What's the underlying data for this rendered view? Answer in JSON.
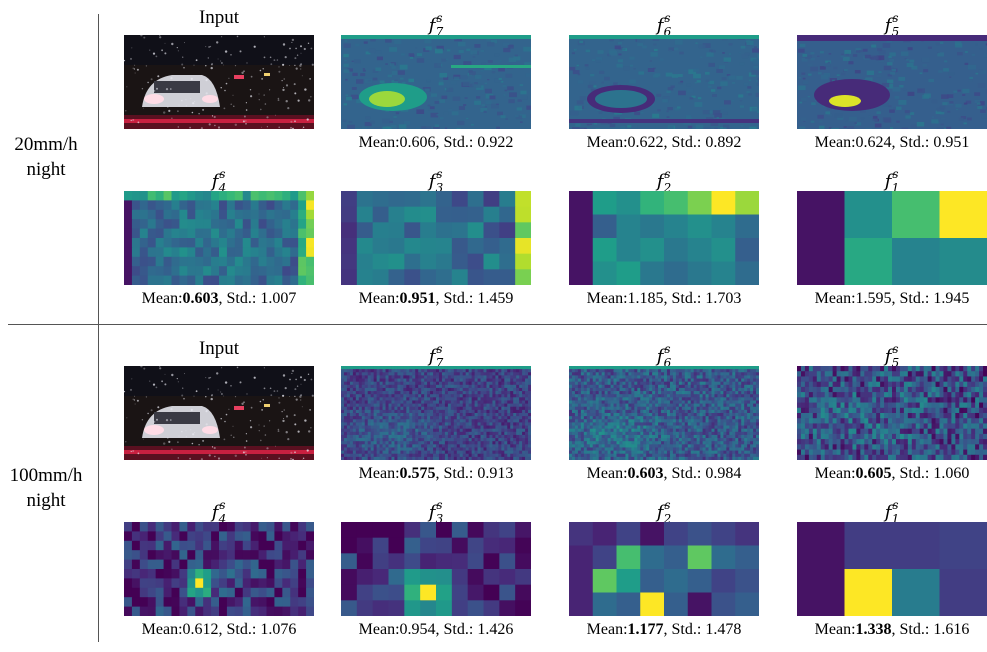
{
  "groups": [
    {
      "label_lines": [
        "20mm/h",
        "night"
      ],
      "cells": [
        {
          "title": "Input",
          "is_math": false,
          "kind": "photo",
          "mean": "",
          "std": "",
          "mean_bold": false,
          "std_bold": false
        },
        {
          "title": "f",
          "sub": "7",
          "sup": "s",
          "is_math": true,
          "kind": "feat7a",
          "mean": "0.606",
          "std": "0.922",
          "mean_bold": false,
          "std_bold": false
        },
        {
          "title": "f",
          "sub": "6",
          "sup": "s",
          "is_math": true,
          "kind": "feat6a",
          "mean": "0.622",
          "std": "0.892",
          "mean_bold": false,
          "std_bold": false
        },
        {
          "title": "f",
          "sub": "5",
          "sup": "s",
          "is_math": true,
          "kind": "feat5a",
          "mean": "0.624",
          "std": "0.951",
          "mean_bold": false,
          "std_bold": false
        },
        {
          "title": "f",
          "sub": "4",
          "sup": "s",
          "is_math": true,
          "kind": "grid",
          "grid": {
            "cols": 24,
            "rows": 10,
            "seed": 11,
            "base": 0.32,
            "var": 0.12,
            "edge": "both"
          },
          "mean": "0.603",
          "std": "1.007",
          "mean_bold": true,
          "std_bold": false
        },
        {
          "title": "f",
          "sub": "3",
          "sup": "s",
          "is_math": true,
          "kind": "grid",
          "grid": {
            "cols": 12,
            "rows": 6,
            "seed": 23,
            "base": 0.32,
            "var": 0.15,
            "edge": "right"
          },
          "mean": "0.951",
          "std": "1.459",
          "mean_bold": true,
          "std_bold": false
        },
        {
          "title": "f",
          "sub": "2",
          "sup": "s",
          "is_math": true,
          "kind": "matrix",
          "matrix": [
            [
              0.05,
              0.55,
              0.5,
              0.65,
              0.7,
              0.8,
              1.0,
              0.85
            ],
            [
              0.05,
              0.3,
              0.45,
              0.4,
              0.45,
              0.5,
              0.45,
              0.35
            ],
            [
              0.05,
              0.55,
              0.45,
              0.5,
              0.4,
              0.45,
              0.5,
              0.3
            ],
            [
              0.05,
              0.5,
              0.55,
              0.4,
              0.35,
              0.4,
              0.45,
              0.35
            ]
          ],
          "mean": "1.185",
          "std": "1.703",
          "mean_bold": false,
          "std_bold": false
        },
        {
          "title": "f",
          "sub": "1",
          "sup": "s",
          "is_math": true,
          "kind": "matrix",
          "matrix": [
            [
              0.05,
              0.5,
              0.7,
              1.0
            ],
            [
              0.05,
              0.6,
              0.45,
              0.48
            ]
          ],
          "mean": "1.595",
          "std": "1.945",
          "mean_bold": false,
          "std_bold": false
        }
      ]
    },
    {
      "label_lines": [
        "100mm/h",
        "night"
      ],
      "cells": [
        {
          "title": "Input",
          "is_math": false,
          "kind": "photo",
          "mean": "",
          "std": "",
          "mean_bold": false,
          "std_bold": false
        },
        {
          "title": "f",
          "sub": "7",
          "sup": "s",
          "is_math": true,
          "kind": "noise",
          "noise": {
            "seed": 31,
            "base": 0.2,
            "var": 0.12
          },
          "mean": "0.575",
          "std": "0.913",
          "mean_bold": true,
          "std_bold": false
        },
        {
          "title": "f",
          "sub": "6",
          "sup": "s",
          "is_math": true,
          "kind": "noise",
          "noise": {
            "seed": 47,
            "base": 0.28,
            "var": 0.15
          },
          "mean": "0.603",
          "std": "0.984",
          "mean_bold": true,
          "std_bold": false
        },
        {
          "title": "f",
          "sub": "5",
          "sup": "s",
          "is_math": true,
          "kind": "grid",
          "grid": {
            "cols": 48,
            "rows": 18,
            "seed": 53,
            "base": 0.22,
            "var": 0.22,
            "edge": "none"
          },
          "mean": "0.605",
          "std": "1.060",
          "mean_bold": true,
          "std_bold": false
        },
        {
          "title": "f",
          "sub": "4",
          "sup": "s",
          "is_math": true,
          "kind": "grid",
          "grid": {
            "cols": 24,
            "rows": 10,
            "seed": 61,
            "base": 0.1,
            "var": 0.2,
            "edge": "none",
            "hot": [
              9,
              6
            ]
          },
          "mean": "0.612",
          "std": "1.076",
          "mean_bold": false,
          "std_bold": false
        },
        {
          "title": "f",
          "sub": "3",
          "sup": "s",
          "is_math": true,
          "kind": "grid",
          "grid": {
            "cols": 12,
            "rows": 6,
            "seed": 71,
            "base": 0.1,
            "var": 0.18,
            "edge": "none",
            "hot": [
              5,
              4
            ]
          },
          "mean": "0.954",
          "std": "1.426",
          "mean_bold": false,
          "std_bold": false
        },
        {
          "title": "f",
          "sub": "2",
          "sup": "s",
          "is_math": true,
          "kind": "matrix",
          "matrix": [
            [
              0.15,
              0.1,
              0.2,
              0.05,
              0.2,
              0.25,
              0.2,
              0.15
            ],
            [
              0.1,
              0.2,
              0.7,
              0.35,
              0.3,
              0.75,
              0.35,
              0.3
            ],
            [
              0.1,
              0.75,
              0.55,
              0.3,
              0.35,
              0.3,
              0.2,
              0.25
            ],
            [
              0.1,
              0.35,
              0.3,
              1.0,
              0.3,
              0.05,
              0.25,
              0.3
            ]
          ],
          "mean": "1.177",
          "std": "1.478",
          "mean_bold": true,
          "std_bold": false
        },
        {
          "title": "f",
          "sub": "1",
          "sup": "s",
          "is_math": true,
          "kind": "matrix",
          "matrix": [
            [
              0.05,
              0.18,
              0.18,
              0.2
            ],
            [
              0.05,
              1.0,
              0.42,
              0.18
            ]
          ],
          "mean": "1.338",
          "std": "1.616",
          "mean_bold": true,
          "std_bold": false
        }
      ]
    }
  ],
  "labels": {
    "mean_prefix": "Mean:",
    "std_prefix": ", Std.: "
  }
}
